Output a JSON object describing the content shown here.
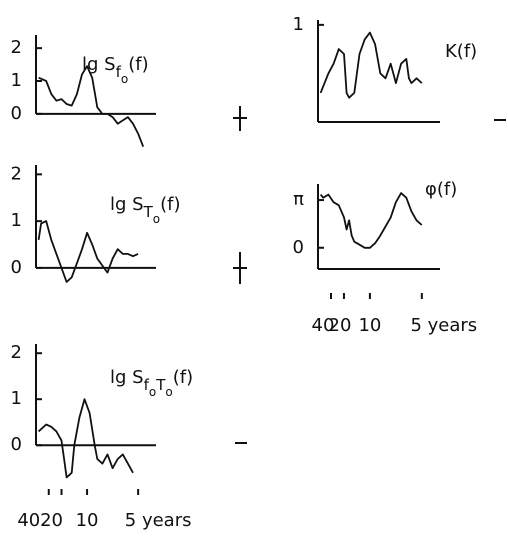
{
  "chart_data": [
    {
      "type": "line",
      "title": [
        "lg S",
        "f",
        "o",
        "(f)"
      ],
      "x": [
        0.005,
        0.02,
        0.03,
        0.04,
        0.05,
        0.06,
        0.07,
        0.08,
        0.09,
        0.1,
        0.11,
        0.12,
        0.13,
        0.14,
        0.15,
        0.16,
        0.17,
        0.18,
        0.19,
        0.2,
        0.21
      ],
      "values": [
        1.1,
        1.0,
        0.6,
        0.4,
        0.45,
        0.3,
        0.25,
        0.6,
        1.2,
        1.45,
        1.1,
        0.2,
        0.0,
        0.0,
        -0.1,
        -0.3,
        -0.2,
        -0.1,
        -0.3,
        -0.6,
        -1.0
      ],
      "xlim": [
        0,
        0.235
      ],
      "ylim": [
        -1.1,
        2.4
      ],
      "yticks": [
        0,
        1,
        2
      ],
      "axis_crossing": 0,
      "color": "#111111"
    },
    {
      "type": "line",
      "title": [
        "K(f)"
      ],
      "x": [
        0.005,
        0.02,
        0.03,
        0.04,
        0.05,
        0.055,
        0.06,
        0.07,
        0.08,
        0.09,
        0.1,
        0.11,
        0.12,
        0.13,
        0.14,
        0.15,
        0.16,
        0.17,
        0.175,
        0.18,
        0.19,
        0.2
      ],
      "values": [
        0.3,
        0.5,
        0.6,
        0.75,
        0.7,
        0.3,
        0.25,
        0.3,
        0.7,
        0.85,
        0.92,
        0.8,
        0.5,
        0.45,
        0.6,
        0.4,
        0.6,
        0.65,
        0.45,
        0.4,
        0.45,
        0.4
      ],
      "xlim": [
        0,
        0.235
      ],
      "ylim": [
        0,
        1.05
      ],
      "yticks": [
        1
      ],
      "color": "#111111"
    },
    {
      "type": "line",
      "title": [
        "lg S",
        "T",
        "o",
        "(f)"
      ],
      "x": [
        0.005,
        0.01,
        0.02,
        0.03,
        0.04,
        0.05,
        0.06,
        0.07,
        0.08,
        0.09,
        0.1,
        0.11,
        0.12,
        0.13,
        0.14,
        0.15,
        0.16,
        0.17,
        0.18,
        0.19,
        0.2
      ],
      "values": [
        0.6,
        0.95,
        1.0,
        0.6,
        0.3,
        0.0,
        -0.3,
        -0.2,
        0.1,
        0.4,
        0.75,
        0.5,
        0.2,
        0.05,
        -0.1,
        0.2,
        0.4,
        0.3,
        0.3,
        0.25,
        0.3
      ],
      "xlim": [
        0,
        0.235
      ],
      "ylim": [
        -0.6,
        2.2
      ],
      "yticks": [
        0,
        1,
        2
      ],
      "axis_crossing": 0,
      "color": "#111111"
    },
    {
      "type": "line",
      "title": [
        "φ(f)"
      ],
      "x": [
        0.005,
        0.01,
        0.02,
        0.03,
        0.04,
        0.05,
        0.055,
        0.06,
        0.065,
        0.07,
        0.08,
        0.09,
        0.1,
        0.11,
        0.12,
        0.13,
        0.14,
        0.15,
        0.16,
        0.17,
        0.18,
        0.19,
        0.2
      ],
      "values": [
        3.5,
        3.3,
        3.5,
        3.0,
        2.8,
        2.0,
        1.2,
        1.8,
        0.8,
        0.4,
        0.2,
        0.0,
        0.0,
        0.3,
        0.8,
        1.4,
        2.0,
        3.0,
        3.6,
        3.3,
        2.4,
        1.8,
        1.5
      ],
      "xlim": [
        0,
        0.235
      ],
      "ylim": [
        -1.4,
        4.2
      ],
      "yticks": [
        0,
        {
          "value": 3.14159,
          "label": "π"
        }
      ],
      "xticks": [
        {
          "value": 0.025,
          "label": "40"
        },
        {
          "value": 0.05,
          "label": "20"
        },
        {
          "value": 0.1,
          "label": "10"
        },
        {
          "value": 0.2,
          "label": "5 years"
        }
      ],
      "color": "#111111"
    },
    {
      "type": "line",
      "title": [
        "lg S",
        "f",
        "o",
        "T",
        "o",
        "(f)"
      ],
      "x": [
        0.005,
        0.02,
        0.03,
        0.04,
        0.05,
        0.055,
        0.06,
        0.07,
        0.075,
        0.085,
        0.095,
        0.105,
        0.115,
        0.12,
        0.13,
        0.14,
        0.15,
        0.16,
        0.17,
        0.18,
        0.19
      ],
      "values": [
        0.3,
        0.45,
        0.4,
        0.3,
        0.1,
        -0.3,
        -0.7,
        -0.6,
        0.0,
        0.6,
        1.0,
        0.7,
        0.0,
        -0.3,
        -0.4,
        -0.2,
        -0.5,
        -0.3,
        -0.2,
        -0.4,
        -0.6
      ],
      "xlim": [
        0,
        0.235
      ],
      "ylim": [
        -0.8,
        2.2
      ],
      "yticks": [
        0,
        1,
        2
      ],
      "axis_crossing": 0,
      "xticks": [
        {
          "value": 0.025,
          "label": "40"
        },
        {
          "value": 0.05,
          "label": "20"
        },
        {
          "value": 0.1,
          "label": "10"
        },
        {
          "value": 0.2,
          "label": "5 years"
        }
      ],
      "color": "#111111"
    }
  ]
}
